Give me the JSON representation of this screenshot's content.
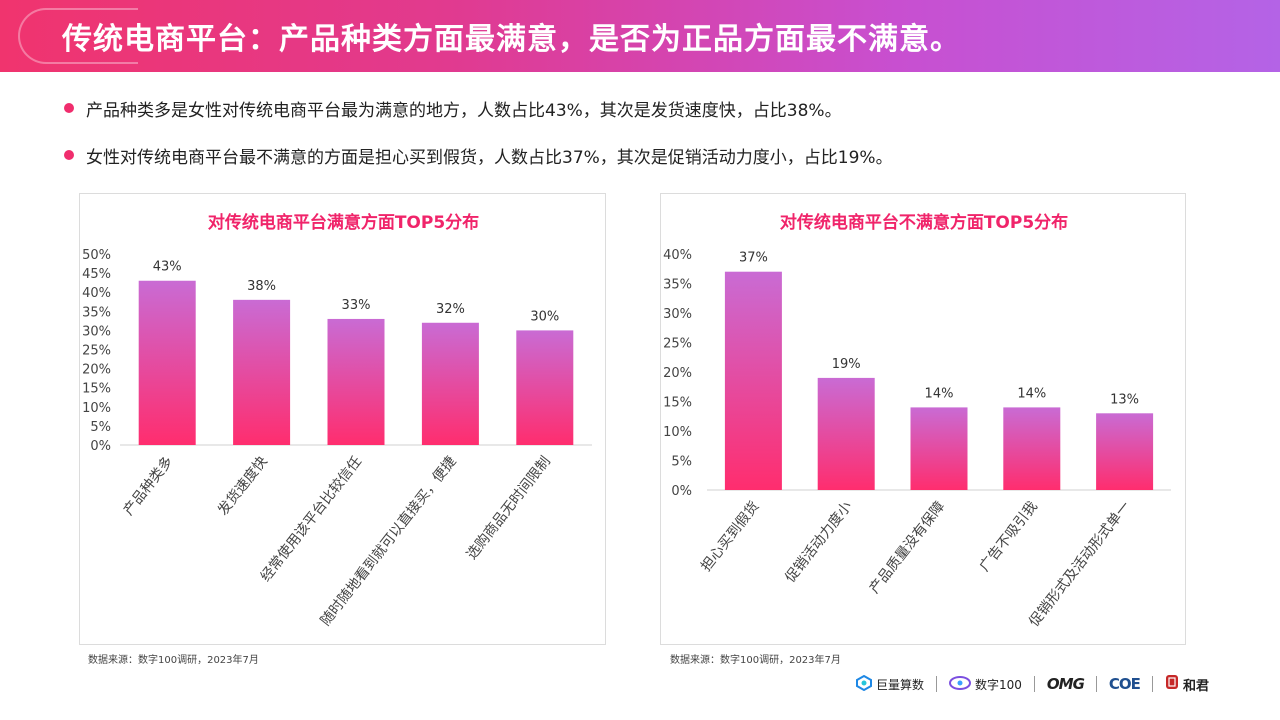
{
  "header": {
    "title": "传统电商平台：产品种类方面最满意，是否为正品方面最不满意。"
  },
  "bullets": [
    "产品种类多是女性对传统电商平台最为满意的地方，人数占比43%，其次是发货速度快，占比38%。",
    "女性对传统电商平台最不满意的方面是担心买到假货，人数占比37%，其次是促销活动力度小，占比19%。"
  ],
  "colors": {
    "bar_top": "#c96bd4",
    "bar_bottom": "#ff2d6e",
    "title": "#f0246a",
    "accent": "#f02d6d"
  },
  "chart_data": [
    {
      "type": "bar",
      "title": "对传统电商平台满意方面TOP5分布",
      "categories": [
        "产品种类多",
        "发货速度快",
        "经常使用该平台比较信任",
        "随时随地看到就可以直接买，便捷",
        "选购商品无时间限制"
      ],
      "values": [
        43,
        38,
        33,
        32,
        30
      ],
      "data_labels": [
        "43%",
        "38%",
        "33%",
        "32%",
        "30%"
      ],
      "yticks": [
        "0%",
        "5%",
        "10%",
        "15%",
        "20%",
        "25%",
        "30%",
        "35%",
        "40%",
        "45%",
        "50%"
      ],
      "ylim": [
        0,
        50
      ],
      "grid": false
    },
    {
      "type": "bar",
      "title": "对传统电商平台不满意方面TOP5分布",
      "categories": [
        "担心买到假货",
        "促销活动力度小",
        "产品质量没有保障",
        "广告不吸引我",
        "促销形式及活动形式单一"
      ],
      "values": [
        37,
        19,
        14,
        14,
        13
      ],
      "data_labels": [
        "37%",
        "19%",
        "14%",
        "14%",
        "13%"
      ],
      "yticks": [
        "0%",
        "5%",
        "10%",
        "15%",
        "20%",
        "25%",
        "30%",
        "35%",
        "40%"
      ],
      "ylim": [
        0,
        40
      ],
      "grid": false
    }
  ],
  "sources": [
    "数据来源：数字100调研，2023年7月",
    "数据来源：数字100调研，2023年7月"
  ],
  "logos": {
    "juliang": {
      "icon": "juliang-logo-icon",
      "label": "巨量算数"
    },
    "shuzi": {
      "icon": "shuzi-logo-icon",
      "label": "数字100"
    },
    "omg": {
      "label": "OMG"
    },
    "coe": {
      "label": "COE"
    },
    "hejun": {
      "icon": "hejun-seal-icon",
      "label": "和君"
    }
  }
}
